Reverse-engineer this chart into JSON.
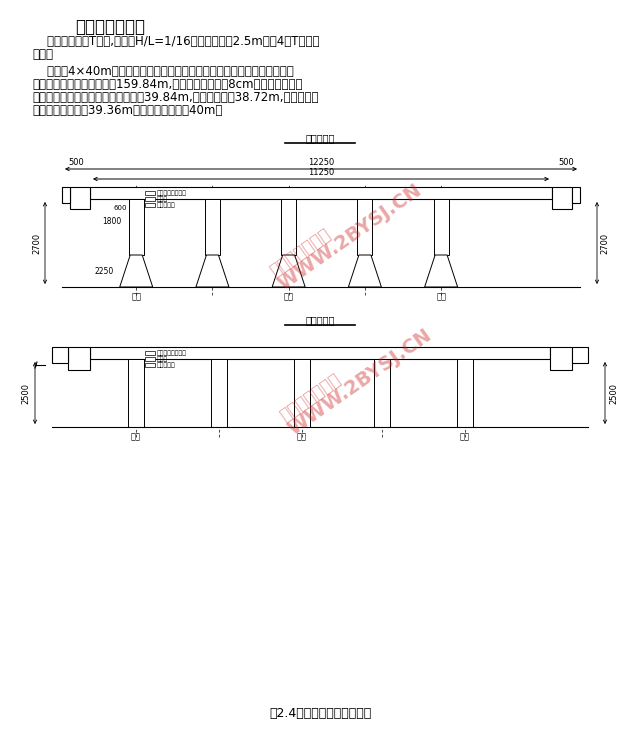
{
  "title": "梁结构尺寸拟定",
  "body1_lines": [
    "    主梁的截面为T形，,高跨比H/L=1/16，梁的高度为2.5m。图4为T梁截面",
    "尺寸。"
  ],
  "body2_lines": [
    "    该桥为4×40m预应力混凝土连续梁桥，施工方法为先简支后连续，考虑伸",
    "缩缝的设置，实际桥跨度为159.84m,即在桥的两头各设8cm的伸缩缝，预制",
    "安装时，边跨和中跨的预制梁长均为39.84m,计算跨径均为38.72m,简支变连续",
    "后边跨计算跨径为39.36m，中跨计算跨径为40m。"
  ],
  "diag1_title": "跨中横断面",
  "diag2_title": "跨中横断面",
  "caption": "图2.4上部构造标准横断面图",
  "bg_color": "#ffffff",
  "lc": "#000000",
  "wm_color": "#cc2222",
  "dim1_top": "12250",
  "dim1_mid": "11250",
  "dim1_side_left": "500",
  "dim1_side_right": "500",
  "dim1_h": "2700",
  "dim1_beam_w": "1800",
  "dim1_pier": "2250",
  "dim2_h": "2500",
  "label_biandun": "边墩",
  "label_zhongdun": "中墩",
  "label_bian": "边墩",
  "label_zhong": "中墩",
  "label_bian2": "边墩",
  "label_bian_bot1": "边墩",
  "label_zhong_bot1": "中墩",
  "label_bian_bot2": "边墩",
  "label_bian_bot2r": "边墩",
  "label_zhong_bot2": "中墩",
  "label_bian_bot2l": "边墩"
}
